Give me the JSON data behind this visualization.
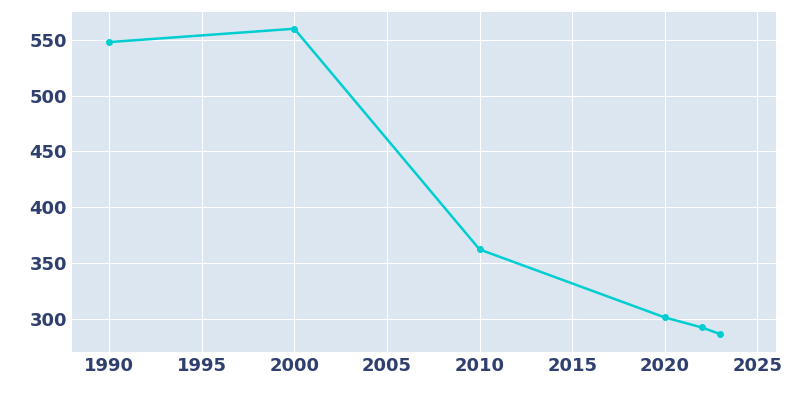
{
  "years": [
    1990,
    2000,
    2010,
    2020,
    2022,
    2023
  ],
  "population": [
    548,
    560,
    362,
    301,
    292,
    286
  ],
  "line_color": "#00CED1",
  "marker": "o",
  "marker_size": 4,
  "line_width": 1.8,
  "background_color": "#ffffff",
  "plot_background_color": "#dce6f0",
  "grid_color": "#ffffff",
  "tick_label_color": "#2f3f6e",
  "xlim": [
    1988,
    2026
  ],
  "ylim": [
    270,
    575
  ],
  "xticks": [
    1990,
    1995,
    2000,
    2005,
    2010,
    2015,
    2020,
    2025
  ],
  "yticks": [
    300,
    350,
    400,
    450,
    500,
    550
  ],
  "figsize": [
    8.0,
    4.0
  ],
  "dpi": 100,
  "tick_fontsize": 13
}
